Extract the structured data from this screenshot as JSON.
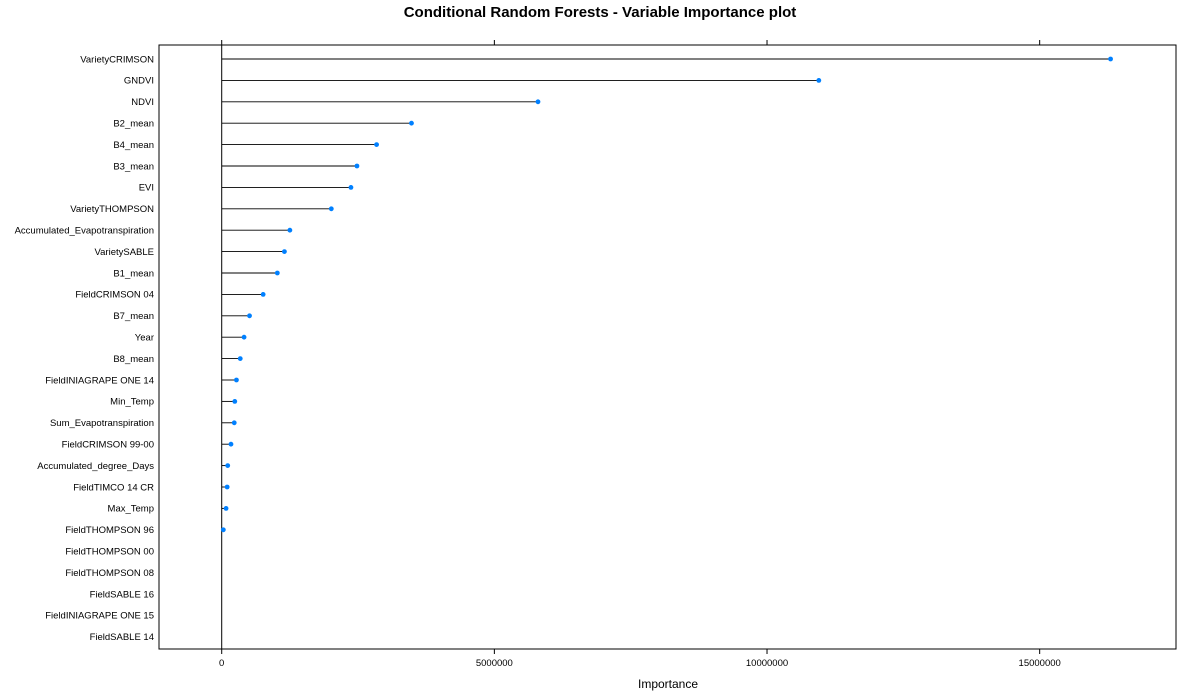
{
  "chart_data": {
    "type": "dot",
    "title": "Conditional Random Forests - Variable Importance plot",
    "xlabel": "Importance",
    "ylabel": "",
    "xlim": [
      -1150000,
      17500000
    ],
    "xticks": [
      0,
      5000000,
      10000000,
      15000000
    ],
    "xtick_labels": [
      "0",
      "5000000",
      "10000000",
      "15000000"
    ],
    "reference_line": 0,
    "point_color": "#0080ff",
    "categories": [
      "VarietyCRIMSON",
      "GNDVI",
      "NDVI",
      "B2_mean",
      "B4_mean",
      "B3_mean",
      "EVI",
      "VarietyTHOMPSON",
      "Accumulated_Evapotranspiration",
      "VarietySABLE",
      "B1_mean",
      "FieldCRIMSON 04",
      "B7_mean",
      "Year",
      "B8_mean",
      "FieldINIAGRAPE ONE 14",
      "Min_Temp",
      "Sum_Evapotranspiration",
      "FieldCRIMSON  99-00",
      "Accumulated_degree_Days",
      "FieldTIMCO 14 CR",
      "Max_Temp",
      "FieldTHOMPSON 96",
      "FieldTHOMPSON 00",
      "FieldTHOMPSON 08",
      "FieldSABLE 16",
      "FieldINIAGRAPE ONE 15",
      "FieldSABLE 14"
    ],
    "values": [
      16300000,
      10950000,
      5800000,
      3480000,
      2840000,
      2480000,
      2370000,
      2010000,
      1250000,
      1150000,
      1020000,
      760000,
      510000,
      410000,
      340000,
      270000,
      240000,
      230000,
      170000,
      110000,
      100000,
      80000,
      30000,
      0,
      0,
      0,
      0,
      0
    ]
  }
}
